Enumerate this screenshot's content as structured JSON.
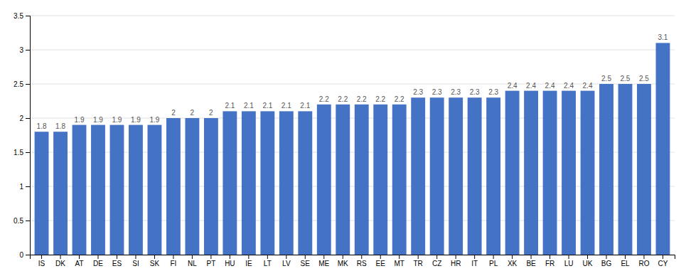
{
  "chart_data": {
    "type": "bar",
    "categories": [
      "IS",
      "DK",
      "AT",
      "DE",
      "ES",
      "SI",
      "SK",
      "FI",
      "NL",
      "PT",
      "HU",
      "IE",
      "LT",
      "LV",
      "SE",
      "ME",
      "MK",
      "RS",
      "EE",
      "MT",
      "TR",
      "CZ",
      "HR",
      "IT",
      "PL",
      "XK",
      "BE",
      "FR",
      "LU",
      "UK",
      "BG",
      "EL",
      "RO",
      "CY"
    ],
    "values": [
      1.8,
      1.8,
      1.9,
      1.9,
      1.9,
      1.9,
      1.9,
      2.0,
      2.0,
      2.0,
      2.1,
      2.1,
      2.1,
      2.1,
      2.1,
      2.2,
      2.2,
      2.2,
      2.2,
      2.2,
      2.3,
      2.3,
      2.3,
      2.3,
      2.3,
      2.4,
      2.4,
      2.4,
      2.4,
      2.4,
      2.5,
      2.5,
      2.5,
      3.1
    ],
    "color": "#4472c4",
    "ylim": [
      0,
      3.5
    ],
    "yticks": [
      0,
      0.5,
      1.0,
      1.5,
      2.0,
      2.5,
      3.0,
      3.5
    ],
    "grid": true,
    "data_labels": true
  }
}
